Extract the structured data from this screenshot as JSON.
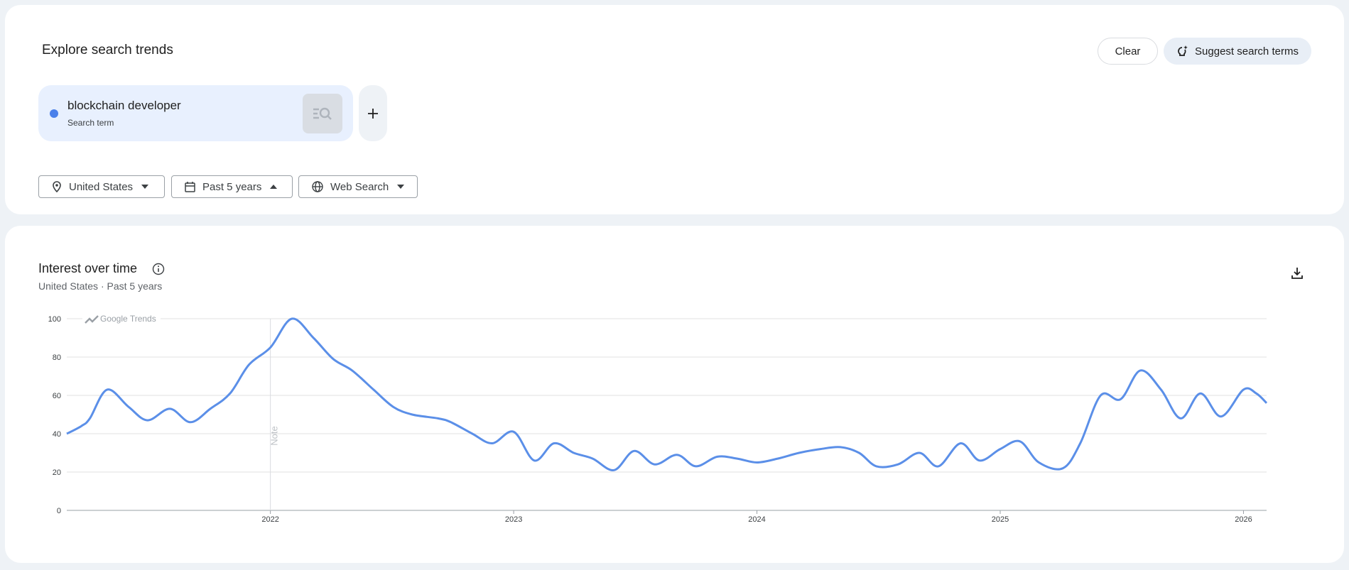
{
  "header": {
    "title": "Explore search trends",
    "clear": "Clear",
    "suggest": "Suggest search terms"
  },
  "search_terms": [
    {
      "label": "blockchain developer",
      "sublabel": "Search term",
      "color": "#4a80ea"
    }
  ],
  "filters": [
    "United States",
    "Past 5 years",
    "Web Search"
  ],
  "chart_data": {
    "type": "line",
    "title": "Interest over time",
    "subtitle": "United States · Past 5 years",
    "watermark": "Google Trends",
    "annotations": [
      {
        "x": 2022,
        "label": "Note"
      }
    ],
    "x": [
      2021.163,
      2021.223,
      2021.258,
      2021.329,
      2021.417,
      2021.495,
      2021.587,
      2021.671,
      2021.753,
      2021.834,
      2021.912,
      2022.0,
      2022.088,
      2022.177,
      2022.258,
      2022.336,
      2022.424,
      2022.505,
      2022.583,
      2022.689,
      2022.742,
      2022.83,
      2022.912,
      2023.0,
      2023.085,
      2023.166,
      2023.247,
      2023.325,
      2023.413,
      2023.495,
      2023.58,
      2023.671,
      2023.749,
      2023.837,
      2023.919,
      2024.0,
      2024.085,
      2024.173,
      2024.261,
      2024.343,
      2024.42,
      2024.491,
      2024.58,
      2024.668,
      2024.746,
      2024.837,
      2024.915,
      2025.0,
      2025.081,
      2025.159,
      2025.258,
      2025.329,
      2025.413,
      2025.495,
      2025.576,
      2025.661,
      2025.742,
      2025.823,
      2025.908,
      2026.0,
      2026.053,
      2026.095
    ],
    "values": [
      40,
      44,
      48,
      63,
      54,
      47,
      53,
      46,
      53,
      61,
      76,
      85,
      100,
      90,
      79,
      73,
      63,
      54,
      50,
      48,
      46,
      40,
      35,
      41,
      26,
      35,
      30,
      27,
      21,
      31,
      24,
      29,
      23,
      28,
      27,
      25,
      27,
      30,
      32,
      33,
      30,
      23,
      24,
      30,
      23,
      35,
      26,
      32,
      36,
      25,
      22,
      35,
      60,
      58,
      73,
      63,
      48,
      61,
      49,
      63,
      61,
      56
    ],
    "color": "#5b8fe8",
    "xlim": [
      2021.163,
      2026.095
    ],
    "xticks": [
      2022,
      2023,
      2024,
      2025,
      2026
    ],
    "ylim": [
      0,
      100
    ],
    "yticks": [
      0,
      20,
      40,
      60,
      80,
      100
    ],
    "grid": true
  }
}
